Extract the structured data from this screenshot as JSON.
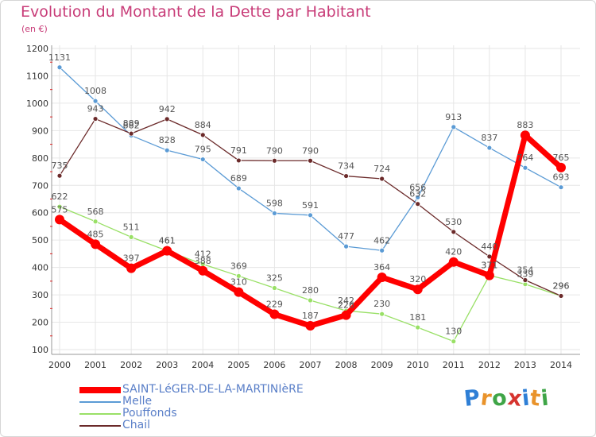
{
  "chart_data": {
    "type": "line",
    "title": "Evolution du Montant de la Dette par Habitant",
    "subtitle": "(en €)",
    "x": [
      "2000",
      "2001",
      "2002",
      "2003",
      "2004",
      "2005",
      "2006",
      "2007",
      "2008",
      "2009",
      "2010",
      "2011",
      "2012",
      "2013",
      "2014"
    ],
    "ylim": [
      100,
      1200
    ],
    "yticks": [
      100,
      200,
      300,
      400,
      500,
      600,
      700,
      800,
      900,
      1000,
      1100,
      1200
    ],
    "grid": true,
    "legend_position": "bottom-left",
    "series": [
      {
        "name": "SAINT-LéGER-DE-LA-MARTINIèRE",
        "color": "#ff0000",
        "width": 7,
        "values": [
          575,
          485,
          397,
          461,
          388,
          310,
          229,
          187,
          226,
          364,
          320,
          420,
          371,
          883,
          765
        ]
      },
      {
        "name": "Melle",
        "color": "#5b9bd5",
        "width": 1.3,
        "values": [
          1131,
          1008,
          882,
          828,
          795,
          689,
          598,
          591,
          477,
          462,
          656,
          913,
          837,
          764,
          693
        ]
      },
      {
        "name": "Pouffonds",
        "color": "#99e066",
        "width": 1.3,
        "values": [
          622,
          568,
          511,
          461,
          412,
          369,
          325,
          280,
          242,
          230,
          181,
          130,
          371,
          339,
          296
        ]
      },
      {
        "name": "Chail",
        "color": "#6b2a2a",
        "width": 1.3,
        "values": [
          735,
          943,
          889,
          942,
          884,
          791,
          790,
          790,
          734,
          724,
          632,
          530,
          440,
          354,
          296
        ]
      }
    ]
  },
  "logo": {
    "text": "Proxiti",
    "colors": [
      "#2f7fd6",
      "#e9932b",
      "#3fa547",
      "#d6342f",
      "#2f7fd6",
      "#e9932b",
      "#3fa547"
    ]
  }
}
